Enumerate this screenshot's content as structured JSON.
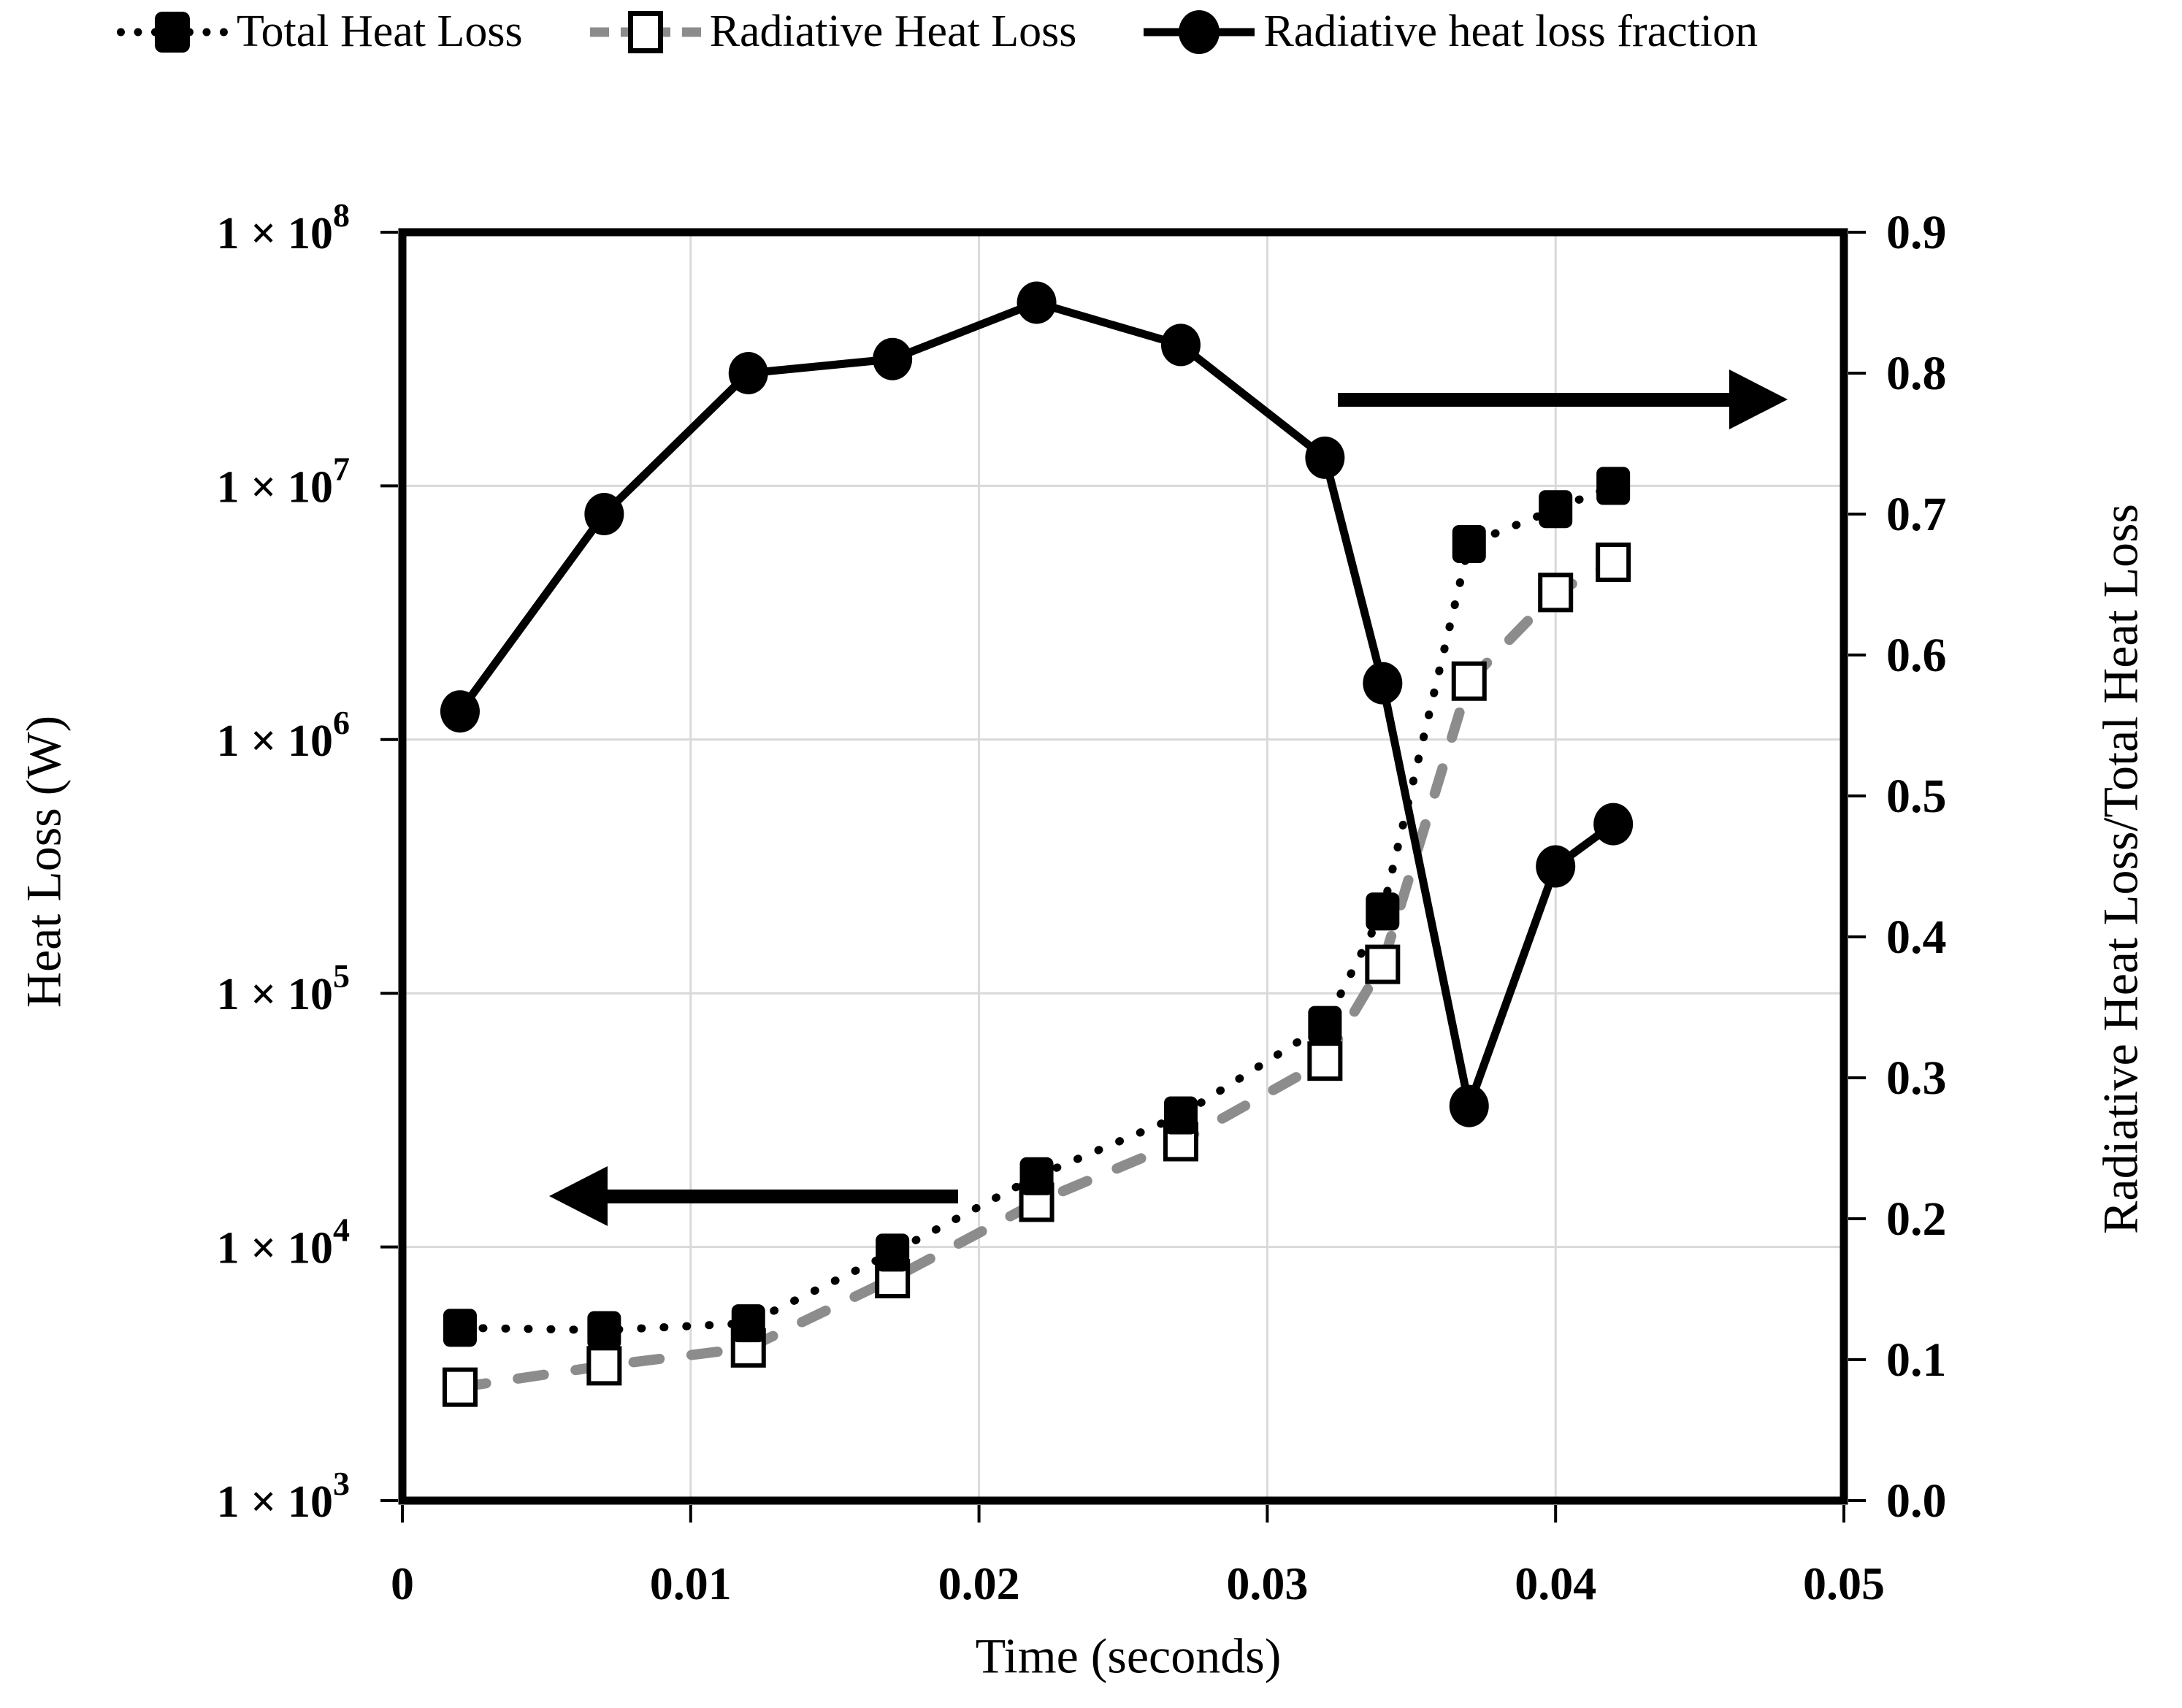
{
  "page": {
    "background": "#ffffff"
  },
  "legend": {
    "items": [
      {
        "label": "Total Heat Loss",
        "marker": "filled-square",
        "line": "dotted",
        "color": "#000000"
      },
      {
        "label": "Radiative Heat Loss",
        "marker": "open-square",
        "line": "dashed",
        "color": "#8c8c8c"
      },
      {
        "label": "Radiative heat loss fraction",
        "marker": "filled-circle",
        "line": "solid",
        "color": "#000000"
      }
    ]
  },
  "colors": {
    "gridline": "#d9d9d9",
    "frame": "#000000",
    "ink": "#000000",
    "radiative_line": "#8c8c8c"
  },
  "chart_data": {
    "type": "line",
    "title": "",
    "x": [
      0.002,
      0.007,
      0.012,
      0.017,
      0.022,
      0.027,
      0.032,
      0.034,
      0.037,
      0.04,
      0.042
    ],
    "series": [
      {
        "name": "Total Heat Loss",
        "axis": "left",
        "line": "dotted",
        "marker": "filled-square",
        "color": "#000000",
        "values": [
          4800,
          4700,
          5000,
          9500,
          19000,
          33000,
          75000,
          210000,
          5900000,
          8100000,
          10000000
        ]
      },
      {
        "name": "Radiative Heat Loss",
        "axis": "left",
        "line": "dashed",
        "marker": "open-square",
        "color": "#8c8c8c",
        "values": [
          2800,
          3400,
          4000,
          7500,
          15000,
          26000,
          54000,
          130000,
          1700000,
          3800000,
          5000000
        ]
      },
      {
        "name": "Radiative heat loss fraction",
        "axis": "right",
        "line": "solid",
        "marker": "filled-circle",
        "color": "#000000",
        "values": [
          0.56,
          0.7,
          0.8,
          0.81,
          0.85,
          0.82,
          0.74,
          0.58,
          0.28,
          0.45,
          0.48
        ]
      }
    ],
    "x_axis": {
      "label": "Time (seconds)",
      "range": [
        0,
        0.05
      ],
      "ticks": [
        0,
        0.01,
        0.02,
        0.03,
        0.04,
        0.05
      ],
      "tick_labels": [
        "0",
        "0.01",
        "0.02",
        "0.03",
        "0.04",
        "0.05"
      ]
    },
    "left_axis": {
      "label": "Heat Loss (W)",
      "scale": "log",
      "range": [
        1000,
        100000000
      ],
      "tick_label_prefix": "1 × 10",
      "tick_exponents": [
        3,
        4,
        5,
        6,
        7,
        8
      ]
    },
    "right_axis": {
      "label": "Radiative Heat Loss/Total Heat Loss",
      "scale": "linear",
      "range": [
        0,
        0.9
      ],
      "ticks": [
        "0.0",
        "0.1",
        "0.2",
        "0.3",
        "0.4",
        "0.5",
        "0.6",
        "0.7",
        "0.8",
        "0.9"
      ]
    },
    "grid": true,
    "legend_position": "top",
    "annotations": [
      {
        "type": "arrow",
        "direction": "left",
        "meaning": "heat-loss-series-read-left-axis"
      },
      {
        "type": "arrow",
        "direction": "right",
        "meaning": "fraction-series-read-right-axis"
      }
    ]
  }
}
